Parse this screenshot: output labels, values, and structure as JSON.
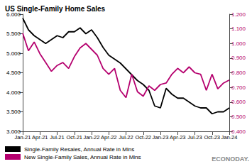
{
  "chart_data": {
    "type": "line",
    "title": "US Single-Family Home Sales",
    "source": "ECONODAY.",
    "categories": [
      "Jan-21",
      null,
      null,
      "Apr-21",
      null,
      null,
      "Jul-21",
      null,
      null,
      "Oct-21",
      null,
      null,
      "Jan-22",
      null,
      null,
      "Apr-22",
      null,
      null,
      "Jul-22",
      null,
      null,
      "Oct-22",
      null,
      null,
      "Jan-23",
      null,
      null,
      "Apr-23",
      null,
      null,
      "Jul-23",
      null,
      null,
      "Oct-23",
      null,
      null,
      "Jan-24"
    ],
    "series": [
      {
        "name": "Single-Family Resales, Annual Rate in Mlns",
        "color": "#000000",
        "values": [
          5.9,
          5.6,
          5.45,
          5.35,
          5.25,
          5.35,
          5.45,
          5.4,
          5.55,
          5.55,
          5.65,
          5.5,
          5.6,
          5.4,
          5.15,
          4.95,
          4.85,
          4.75,
          4.6,
          4.45,
          4.3,
          4.2,
          4.05,
          3.65,
          3.6,
          4.1,
          3.95,
          3.85,
          3.85,
          3.75,
          3.65,
          3.6,
          3.6,
          3.45,
          3.5,
          3.5,
          3.6
        ]
      },
      {
        "name": "New Single-Family Sales, Annual Rate in Mlns",
        "color": "#b5006e",
        "axis": "y2",
        "values": [
          1.07,
          0.95,
          1.01,
          0.93,
          0.87,
          0.81,
          0.85,
          0.87,
          0.83,
          0.91,
          0.97,
          1.0,
          0.96,
          0.92,
          0.83,
          0.79,
          0.83,
          0.68,
          0.63,
          0.79,
          0.67,
          0.64,
          0.71,
          0.68,
          0.72,
          0.73,
          0.79,
          0.83,
          0.8,
          0.84,
          0.8,
          0.79,
          0.68,
          0.79,
          0.69,
          0.73,
          0.75
        ]
      }
    ],
    "ylim": [
      3.0,
      6.0
    ],
    "yticks": [
      {
        "value": 3.0,
        "label": "3.000"
      },
      {
        "value": 3.5,
        "label": "3.500"
      },
      {
        "value": 4.0,
        "label": "4.000"
      },
      {
        "value": 4.5,
        "label": "4.500"
      },
      {
        "value": 5.0,
        "label": "5.000"
      },
      {
        "value": 5.5,
        "label": "5.500"
      },
      {
        "value": 6.0,
        "label": "6.000"
      }
    ],
    "y2lim": [
      0.4,
      1.2
    ],
    "y2ticks": [
      {
        "value": 0.4,
        "label": "0.400"
      },
      {
        "value": 0.5,
        "label": "0.500"
      },
      {
        "value": 0.6,
        "label": "0.600"
      },
      {
        "value": 0.7,
        "label": "0.700"
      },
      {
        "value": 0.8,
        "label": "0.800"
      },
      {
        "value": 0.9,
        "label": "0.900"
      },
      {
        "value": 1.0,
        "label": "1.000"
      },
      {
        "value": 1.1,
        "label": "1.100"
      },
      {
        "value": 1.2,
        "label": "1.200"
      }
    ],
    "grid": false,
    "legend": "bottom"
  }
}
